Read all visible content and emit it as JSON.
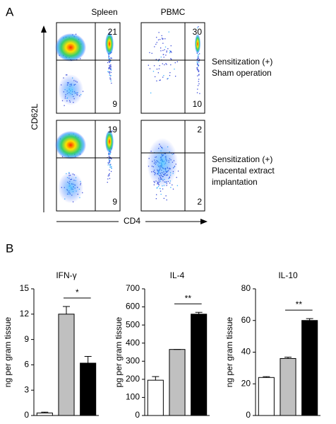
{
  "panel_labels": [
    "A",
    "B"
  ],
  "panel_a": {
    "columns": [
      "Spleen",
      "PBMC"
    ],
    "y_axis": "CD62L",
    "x_axis": "CD4",
    "rows": [
      {
        "label": [
          "Sensitization (+)",
          "Sham operation"
        ],
        "spleen": [
          21,
          9
        ],
        "pbmc": [
          30,
          10
        ]
      },
      {
        "label": [
          "Sensitization (+)",
          "Placental extract",
          "implantation"
        ],
        "spleen": [
          19,
          9
        ],
        "pbmc": [
          2,
          2
        ]
      }
    ]
  },
  "chart_data": [
    {
      "type": "bar",
      "title": "IFN-γ",
      "y_label": "ng per gram tissue",
      "categories": [
        null,
        null,
        null
      ],
      "values": [
        0.3,
        12,
        6.2
      ],
      "errors": [
        0.1,
        0.9,
        0.8
      ],
      "colors": [
        "#ffffff",
        "#c0c0c0",
        "#000000"
      ],
      "ylim": [
        0,
        15
      ],
      "yticks": [
        0,
        3,
        6,
        9,
        12,
        15
      ],
      "significance": "*"
    },
    {
      "type": "bar",
      "title": "IL-4",
      "y_label": "pg per gram tissue",
      "categories": [
        null,
        null,
        null
      ],
      "values": [
        195,
        365,
        560
      ],
      "errors": [
        20,
        0,
        10
      ],
      "colors": [
        "#ffffff",
        "#c0c0c0",
        "#000000"
      ],
      "ylim": [
        0,
        700
      ],
      "yticks": [
        0,
        100,
        200,
        300,
        400,
        500,
        600,
        700
      ],
      "significance": "**"
    },
    {
      "type": "bar",
      "title": "IL-10",
      "y_label": "ng per gram tissue",
      "categories": [
        null,
        null,
        null
      ],
      "values": [
        24,
        36,
        60
      ],
      "errors": [
        0.5,
        0.8,
        1.2
      ],
      "colors": [
        "#ffffff",
        "#c0c0c0",
        "#000000"
      ],
      "ylim": [
        0,
        80
      ],
      "yticks": [
        0,
        20,
        40,
        60,
        80
      ],
      "significance": "**"
    }
  ]
}
